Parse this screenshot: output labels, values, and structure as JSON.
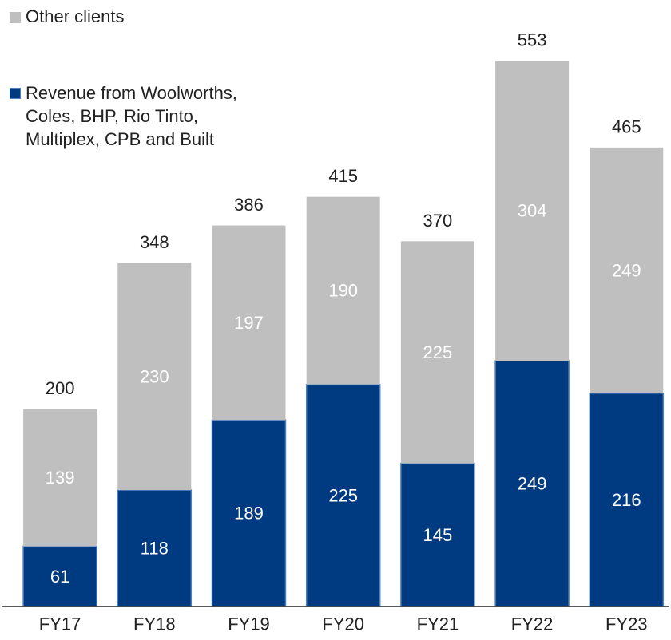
{
  "chart_data": {
    "type": "bar",
    "stacked": true,
    "title": "",
    "xlabel": "",
    "ylabel": "",
    "categories": [
      "FY17",
      "FY18",
      "FY19",
      "FY20",
      "FY21",
      "FY22",
      "FY23"
    ],
    "series": [
      {
        "name": "Revenue from Woolworths, Coles, BHP, Rio Tinto, Multiplex, CPB and Built",
        "legend_lines": [
          "Revenue from Woolworths,",
          "Coles, BHP, Rio Tinto,",
          "Multiplex, CPB and Built"
        ],
        "color": "#003a80",
        "label_color": "#ffffff",
        "values": [
          61,
          118,
          189,
          225,
          145,
          249,
          216
        ]
      },
      {
        "name": "Other clients",
        "color": "#bfbfbf",
        "label_color": "#ffffff",
        "values": [
          139,
          230,
          197,
          190,
          225,
          304,
          249
        ]
      }
    ],
    "totals": [
      200,
      348,
      386,
      415,
      370,
      553,
      465
    ],
    "ylim": [
      0,
      600
    ],
    "grid": false,
    "legend_position": "top-left"
  }
}
